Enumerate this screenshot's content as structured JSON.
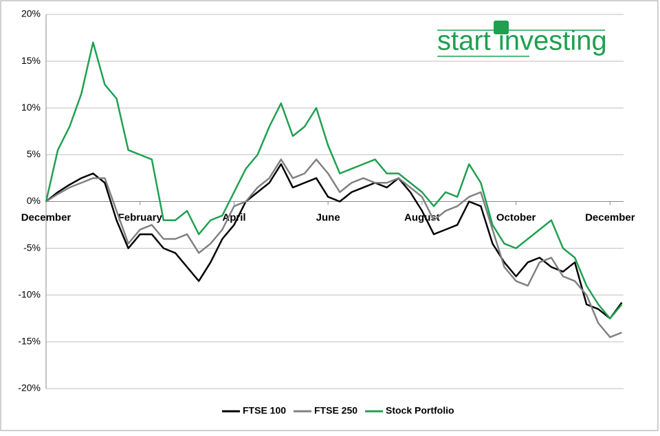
{
  "chart_data": {
    "type": "line",
    "logo": "start investing",
    "categories": [
      "December",
      null,
      null,
      null,
      null,
      null,
      null,
      null,
      "February",
      null,
      null,
      null,
      null,
      null,
      null,
      null,
      "April",
      null,
      null,
      null,
      null,
      null,
      null,
      null,
      "June",
      null,
      null,
      null,
      null,
      null,
      null,
      null,
      "August",
      null,
      null,
      null,
      null,
      null,
      null,
      null,
      "October",
      null,
      null,
      null,
      null,
      null,
      null,
      null,
      "December",
      null
    ],
    "series": [
      {
        "name": "FTSE 100",
        "color": "#000000",
        "values": [
          0,
          1,
          1.8,
          2.5,
          3,
          2,
          -2,
          -5,
          -3.5,
          -3.5,
          -5,
          -5.5,
          -7,
          -8.5,
          -6.5,
          -4,
          -2.5,
          0,
          1,
          2,
          4,
          1.5,
          2,
          2.5,
          0.5,
          0,
          1,
          1.5,
          2,
          1.5,
          2.5,
          1,
          -1,
          -3.5,
          -3,
          -2.5,
          0,
          -0.5,
          -4.5,
          -6.5,
          -8,
          -6.5,
          -6,
          -7,
          -7.5,
          -6.5,
          -11,
          -11.5,
          -12.5,
          -10.8
        ]
      },
      {
        "name": "FTSE 250",
        "color": "#808080",
        "values": [
          0,
          0.8,
          1.5,
          2,
          2.5,
          2.5,
          -1,
          -4.5,
          -3,
          -2.5,
          -4,
          -4,
          -3.5,
          -5.5,
          -4.5,
          -3,
          -0.5,
          0,
          1.5,
          2.5,
          4.5,
          2.5,
          3,
          4.5,
          3,
          1,
          2,
          2.5,
          2,
          2,
          2.5,
          1.5,
          0.5,
          -2,
          -1,
          -0.5,
          0.5,
          1,
          -3,
          -7,
          -8.5,
          -9,
          -6.5,
          -6,
          -8,
          -8.5,
          -10,
          -13,
          -14.5,
          -14
        ]
      },
      {
        "name": "Stock Portfolio",
        "color": "#1fa050",
        "values": [
          0,
          5.5,
          8,
          11.5,
          17,
          12.5,
          11,
          5.5,
          5,
          4.5,
          -2,
          -2,
          -1,
          -3.5,
          -2,
          -1.5,
          1,
          3.5,
          5,
          8,
          10.5,
          7,
          8,
          10,
          6,
          3,
          3.5,
          4,
          4.5,
          3,
          3,
          2,
          1,
          -0.5,
          1,
          0.5,
          4,
          2,
          -2.5,
          -4.5,
          -5,
          -4,
          -3,
          -2,
          -5,
          -6,
          -9,
          -11,
          -12.5,
          -11
        ]
      }
    ],
    "ylim": [
      -20,
      20
    ],
    "yticks": [
      {
        "value": -20,
        "label": "-20%"
      },
      {
        "value": -15,
        "label": "-15%"
      },
      {
        "value": -10,
        "label": "-10%"
      },
      {
        "value": -5,
        "label": "-5%"
      },
      {
        "value": 0,
        "label": "0%"
      },
      {
        "value": 5,
        "label": "5%"
      },
      {
        "value": 10,
        "label": "10%"
      },
      {
        "value": 15,
        "label": "15%"
      },
      {
        "value": 20,
        "label": "20%"
      }
    ],
    "grid": true,
    "legend": "bottom"
  }
}
